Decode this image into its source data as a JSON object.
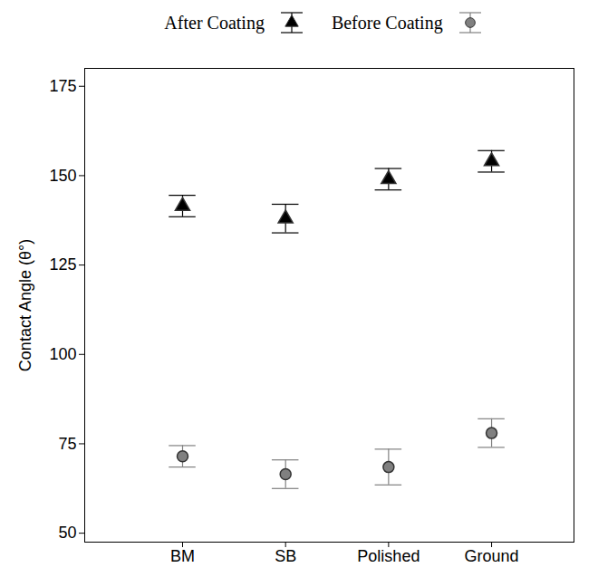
{
  "chart_data": {
    "type": "scatter",
    "categories": [
      "BM",
      "SB",
      "Polished",
      "Ground"
    ],
    "y_label": "Contact Angle (θ°)",
    "ylim": [
      47.5,
      180
    ],
    "yticks": [
      50,
      75,
      100,
      125,
      150,
      175
    ],
    "legend": "top",
    "series": [
      {
        "name": "After Coating",
        "color": "#000000",
        "marker": "triangle",
        "values": [
          141.5,
          138,
          149,
          154
        ],
        "errors": [
          3,
          4,
          3,
          3
        ]
      },
      {
        "name": "Before Coating",
        "color": "#808080",
        "marker": "circle",
        "values": [
          71.5,
          66.5,
          68.5,
          78
        ],
        "errors": [
          3,
          4,
          5,
          4
        ]
      }
    ]
  }
}
